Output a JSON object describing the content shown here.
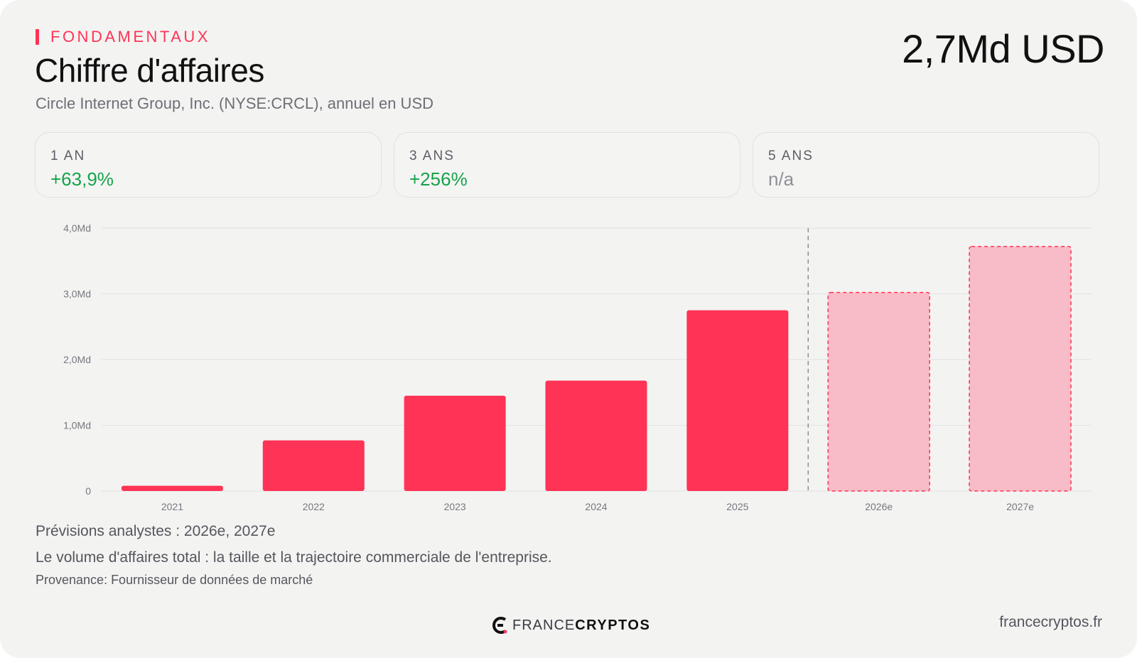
{
  "header": {
    "eyebrow": "FONDAMENTAUX",
    "title": "Chiffre d'affaires",
    "subtitle": "Circle Internet Group, Inc. (NYSE:CRCL), annuel en USD",
    "headline_value": "2,7Md USD"
  },
  "stats": [
    {
      "label": "1 AN",
      "value": "+63,9%",
      "tone": "positive"
    },
    {
      "label": "3 ANS",
      "value": "+256%",
      "tone": "positive"
    },
    {
      "label": "5 ANS",
      "value": "n/a",
      "tone": "neutral"
    }
  ],
  "chart_data": {
    "type": "bar",
    "categories": [
      "2021",
      "2022",
      "2023",
      "2024",
      "2025",
      "2026e",
      "2027e"
    ],
    "values": [
      0.08,
      0.77,
      1.45,
      1.68,
      2.75,
      3.02,
      3.72
    ],
    "forecast": [
      false,
      false,
      false,
      false,
      false,
      true,
      true
    ],
    "ylim": [
      0,
      4
    ],
    "yticks": [
      0,
      1,
      2,
      3,
      4
    ],
    "ytick_labels": [
      "0",
      "1,0Md",
      "2,0Md",
      "3,0Md",
      "4,0Md"
    ],
    "title": "",
    "xlabel": "",
    "ylabel": "",
    "grid": true,
    "colors": {
      "actual": "#ff3355",
      "forecast_fill": "#f7bcc7",
      "forecast_border": "#ff3355"
    }
  },
  "footer": {
    "forecast_note": "Prévisions analystes : 2026e, 2027e",
    "description": "Le volume d'affaires total : la taille et la trajectoire commerciale de l'entreprise.",
    "source": "Provenance: Fournisseur de données de marché",
    "logo_left": "FRANCE",
    "logo_right": "CRYPTOS",
    "site": "francecryptos.fr"
  }
}
